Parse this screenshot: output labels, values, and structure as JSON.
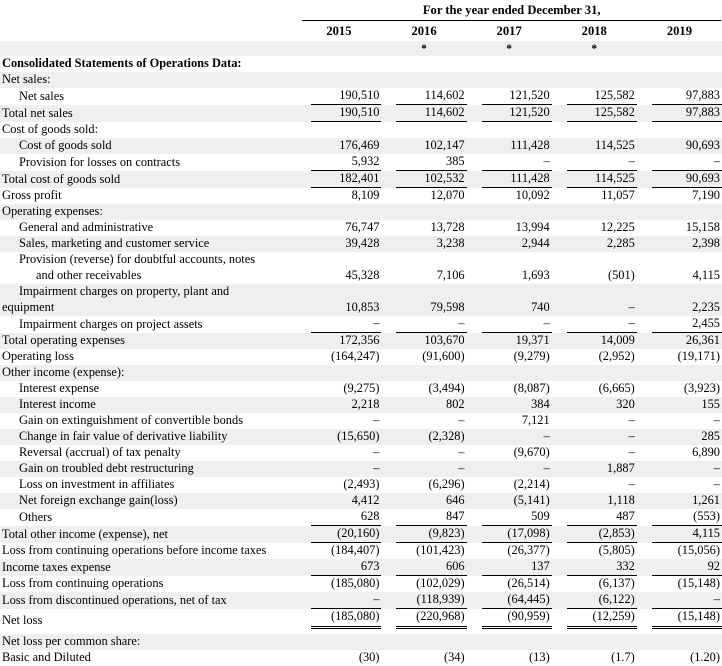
{
  "colors": {
    "row_shade": "#efefef",
    "text": "#000000",
    "rule": "#000000"
  },
  "header": {
    "title": "For the year ended December 31,",
    "years": [
      "2015",
      "2016",
      "2017",
      "2018",
      "2019"
    ],
    "asterisks": [
      "",
      "*",
      "*",
      "*",
      ""
    ]
  },
  "rows": [
    {
      "label": "Consolidated Statements of Operations Data:",
      "indent": 0,
      "bold": true,
      "shaded": false,
      "values": null
    },
    {
      "label": "Net sales:",
      "indent": 0,
      "shaded": true,
      "values": null
    },
    {
      "label": "Net sales",
      "indent": 1,
      "shaded": false,
      "underline": "single",
      "values": [
        "190,510",
        "114,602",
        "121,520",
        "125,582",
        "97,883"
      ]
    },
    {
      "label": "Total net sales",
      "indent": 0,
      "shaded": true,
      "underline": "single",
      "values": [
        "190,510",
        "114,602",
        "121,520",
        "125,582",
        "97,883"
      ]
    },
    {
      "label": "Cost of goods sold:",
      "indent": 0,
      "shaded": false,
      "values": null
    },
    {
      "label": "Cost of goods sold",
      "indent": 1,
      "shaded": true,
      "values": [
        "176,469",
        "102,147",
        "111,428",
        "114,525",
        "90,693"
      ]
    },
    {
      "label": "Provision for losses on contracts",
      "indent": 1,
      "shaded": false,
      "underline": "single",
      "values": [
        "5,932",
        "385",
        "–",
        "–",
        "–"
      ]
    },
    {
      "label": "Total cost of goods sold",
      "indent": 0,
      "shaded": true,
      "underline": "single",
      "values": [
        "182,401",
        "102,532",
        "111,428",
        "114,525",
        "90,693"
      ]
    },
    {
      "label": "Gross profit",
      "indent": 0,
      "shaded": false,
      "values": [
        "8,109",
        "12,070",
        "10,092",
        "11,057",
        "7,190"
      ]
    },
    {
      "label": "Operating expenses:",
      "indent": 0,
      "shaded": true,
      "values": null
    },
    {
      "label": "General and administrative",
      "indent": 1,
      "shaded": false,
      "values": [
        "76,747",
        "13,728",
        "13,994",
        "12,225",
        "15,158"
      ]
    },
    {
      "label": "Sales, marketing and customer service",
      "indent": 1,
      "shaded": true,
      "values": [
        "39,428",
        "3,238",
        "2,944",
        "2,285",
        "2,398"
      ]
    },
    {
      "label": "Provision (reverse) for doubtful accounts, notes",
      "label2": "and other receivables",
      "label2_indent": 2,
      "indent": 1,
      "shaded": false,
      "values": [
        "45,328",
        "7,106",
        "1,693",
        "(501)",
        "4,115"
      ]
    },
    {
      "label": "Impairment charges on property, plant and",
      "label2": "equipment",
      "label2_indent": 0,
      "indent": 1,
      "shaded": true,
      "values": [
        "10,853",
        "79,598",
        "740",
        "–",
        "2,235"
      ]
    },
    {
      "label": "Impairment charges on project assets",
      "indent": 1,
      "shaded": false,
      "underline": "single",
      "values": [
        "–",
        "–",
        "–",
        "–",
        "2,455"
      ]
    },
    {
      "label": "Total operating expenses",
      "indent": 0,
      "shaded": true,
      "values": [
        "172,356",
        "103,670",
        "19,371",
        "14,009",
        "26,361"
      ]
    },
    {
      "label": "Operating loss",
      "indent": 0,
      "shaded": false,
      "values": [
        "(164,247)",
        "(91,600)",
        "(9,279)",
        "(2,952)",
        "(19,171)"
      ]
    },
    {
      "label": "Other income (expense):",
      "indent": 0,
      "shaded": true,
      "values": null
    },
    {
      "label": "Interest expense",
      "indent": 1,
      "shaded": false,
      "values": [
        "(9,275)",
        "(3,494)",
        "(8,087)",
        "(6,665)",
        "(3,923)"
      ]
    },
    {
      "label": "Interest income",
      "indent": 1,
      "shaded": true,
      "values": [
        "2,218",
        "802",
        "384",
        "320",
        "155"
      ]
    },
    {
      "label": "Gain on extinguishment of convertible bonds",
      "indent": 1,
      "shaded": false,
      "values": [
        "–",
        "–",
        "7,121",
        "–",
        "–"
      ]
    },
    {
      "label": "Change in fair value of derivative liability",
      "indent": 1,
      "shaded": true,
      "values": [
        "(15,650)",
        "(2,328)",
        "–",
        "–",
        "285"
      ]
    },
    {
      "label": "Reversal (accrual) of tax penalty",
      "indent": 1,
      "shaded": false,
      "values": [
        "–",
        "–",
        "(9,670)",
        "–",
        "6,890"
      ]
    },
    {
      "label": "Gain on troubled debt restructuring",
      "indent": 1,
      "shaded": true,
      "values": [
        "–",
        "–",
        "–",
        "1,887",
        "–"
      ]
    },
    {
      "label": "Loss on investment in affiliates",
      "indent": 1,
      "shaded": false,
      "values": [
        "(2,493)",
        "(6,296)",
        "(2,214)",
        "–",
        "–"
      ]
    },
    {
      "label": "Net foreign exchange gain(loss)",
      "indent": 1,
      "shaded": true,
      "values": [
        "4,412",
        "646",
        "(5,141)",
        "1,118",
        "1,261"
      ]
    },
    {
      "label": "Others",
      "indent": 1,
      "shaded": false,
      "underline": "single",
      "values": [
        "628",
        "847",
        "509",
        "487",
        "(553)"
      ]
    },
    {
      "label": "Total other income (expense), net",
      "indent": 0,
      "shaded": true,
      "underline": "single",
      "values": [
        "(20,160)",
        "(9,823)",
        "(17,098)",
        "(2,853)",
        "4,115"
      ]
    },
    {
      "label": "Loss from continuing operations before income taxes",
      "indent": 0,
      "shaded": false,
      "values": [
        "(184,407)",
        "(101,423)",
        "(26,377)",
        "(5,805)",
        "(15,056)"
      ]
    },
    {
      "label": "Income taxes expense",
      "indent": 0,
      "shaded": true,
      "underline": "single",
      "values": [
        "673",
        "606",
        "137",
        "332",
        "92"
      ]
    },
    {
      "label": "Loss from continuing operations",
      "indent": 0,
      "shaded": false,
      "values": [
        "(185,080)",
        "(102,029)",
        "(26,514)",
        "(6,137)",
        "(15,148)"
      ]
    },
    {
      "label": "Loss from discontinued operations, net of tax",
      "indent": 0,
      "shaded": true,
      "underline": "single",
      "values": [
        "–",
        "(118,939)",
        "(64,445)",
        "(6,122)",
        "–"
      ]
    },
    {
      "label": "Net loss",
      "indent": 0,
      "shaded": false,
      "underline": "double",
      "gap_after": true,
      "values": [
        "(185,080)",
        "(220,968)",
        "(90,959)",
        "(12,259)",
        "(15,148)"
      ]
    },
    {
      "label": "Net loss per common share:",
      "indent": 0,
      "shaded": true,
      "values": null
    },
    {
      "label": "Basic and Diluted",
      "indent": 0,
      "shaded": false,
      "values": [
        "(30)",
        "(34)",
        "(13)",
        "(1.7)",
        "(1.20)"
      ]
    }
  ]
}
